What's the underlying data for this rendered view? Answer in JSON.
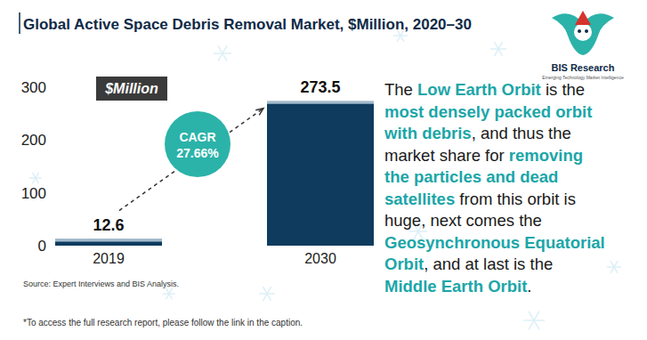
{
  "chart_data": {
    "type": "bar",
    "title": "Global Active Space Debris Removal Market, $Million, 2020–30",
    "categories": [
      "2019",
      "2030"
    ],
    "values": [
      12.6,
      273.5
    ],
    "color": "#0e3b5e",
    "ylim": [
      0,
      300
    ],
    "yticks": [
      0,
      100,
      200,
      300
    ],
    "grid": false,
    "data_labels": true,
    "unit_label": "$Million",
    "annotations": [
      {
        "text": "CAGR"
      },
      {
        "text": "27.66%"
      }
    ],
    "source": "Source: Expert Interviews and BIS Analysis.",
    "footnote": "*To access the full research report, please follow the link in the caption.",
    "logo": {
      "name": "BIS Research",
      "tagline": "Emerging Technology Market Intelligence"
    },
    "description": [
      [
        {
          "text": "The "
        },
        {
          "text": "Low Earth Orbit",
          "color": "#1ba6a8"
        },
        {
          "text": " is the"
        }
      ],
      [
        {
          "text": "most densely packed orbit",
          "color": "#1ba6a8"
        }
      ],
      [
        {
          "text": "with debris",
          "color": "#1ba6a8"
        },
        {
          "text": ", and thus the"
        }
      ],
      [
        {
          "text": "market share for "
        },
        {
          "text": "removing",
          "color": "#1ba6a8"
        }
      ],
      [
        {
          "text": "the particles and dead",
          "color": "#1ba6a8"
        }
      ],
      [
        {
          "text": "satellites",
          "color": "#1ba6a8"
        },
        {
          "text": " from this orbit is"
        }
      ],
      [
        {
          "text": "huge, next comes the"
        }
      ],
      [
        {
          "text": "Geosynchronous Equatorial",
          "color": "#1ba6a8"
        }
      ],
      [
        {
          "text": "Orbit",
          "color": "#1ba6a8"
        },
        {
          "text": ", and at last is the"
        }
      ],
      [
        {
          "text": "Middle Earth Orbit",
          "color": "#1ba6a8"
        },
        {
          "text": "."
        }
      ]
    ]
  }
}
